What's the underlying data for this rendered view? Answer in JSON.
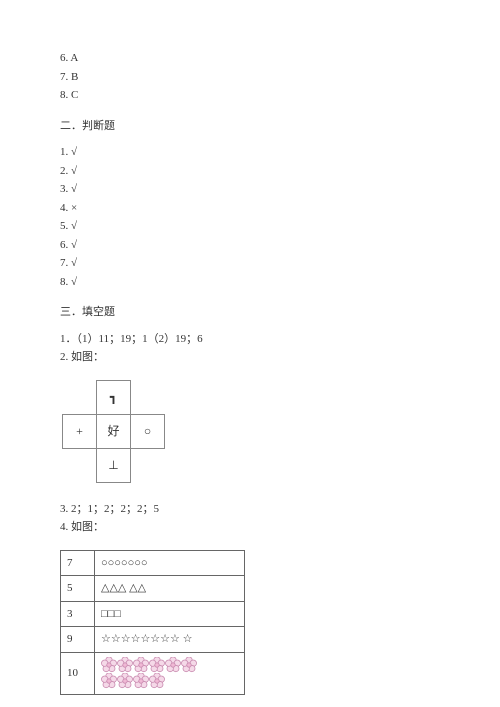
{
  "answers_top": [
    "6. A",
    "7. B",
    "8. C"
  ],
  "section2": {
    "title": "二．判断题",
    "items": [
      "1. √",
      "2. √",
      "3. √",
      "4. ×",
      "5. √",
      "6. √",
      "7. √",
      "8. √"
    ]
  },
  "section3": {
    "title": "三．填空题",
    "q1": "1．（1）11；19；1（2）19；6",
    "q2": "2. 如图：",
    "cube": {
      "top": "┓",
      "left": "+",
      "center": "好",
      "right": "○",
      "bottom": "⊥"
    },
    "q3": "3. 2；1；2；2；2；5",
    "q4": "4. 如图：",
    "table": [
      {
        "n": "7",
        "shapes": "○○○○○○○"
      },
      {
        "n": "5",
        "shapes": "△△△ △△"
      },
      {
        "n": "3",
        "shapes": "□□□"
      },
      {
        "n": "9",
        "shapes": "☆☆☆☆☆☆☆☆ ☆"
      },
      {
        "n": "10",
        "shapes": "flowers10"
      }
    ]
  }
}
